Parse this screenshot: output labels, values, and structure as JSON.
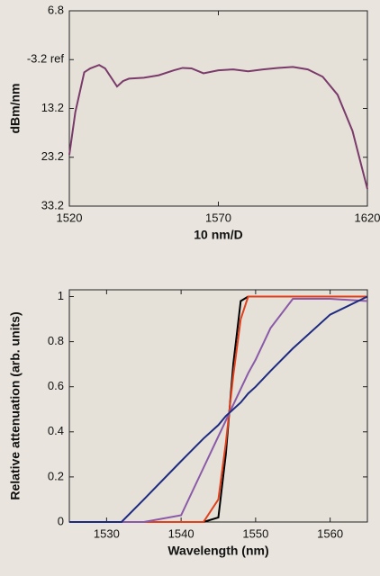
{
  "chart_data": [
    {
      "type": "line",
      "xlabel": "10 nm/D",
      "ylabel": "dBm/nm",
      "x": [
        1520,
        1522,
        1525,
        1527,
        1530,
        1532,
        1536,
        1538,
        1540,
        1545,
        1550,
        1555,
        1558,
        1561,
        1565,
        1570,
        1575,
        1580,
        1585,
        1590,
        1595,
        1600,
        1605,
        1610,
        1615,
        1620
      ],
      "series": [
        {
          "color": "#7a3a6a",
          "values": [
            -22.7,
            -14.0,
            -5.8,
            -5.0,
            -4.3,
            -5.0,
            -8.7,
            -7.6,
            -7.1,
            -6.9,
            -6.4,
            -5.4,
            -4.9,
            -5.0,
            -6.0,
            -5.4,
            -5.2,
            -5.6,
            -5.2,
            -4.9,
            -4.7,
            -5.2,
            -6.7,
            -10.4,
            -17.8,
            -29.7
          ]
        }
      ],
      "xlim": [
        1520,
        1620
      ],
      "xticks": [
        1520,
        1570,
        1620
      ],
      "ylim": [
        -33.2,
        6.8
      ],
      "yticks": [
        {
          "value": 6.8,
          "label": "6.8"
        },
        {
          "value": -3.2,
          "label": "-3.2 ref"
        },
        {
          "value": -13.2,
          "label": "13.2"
        },
        {
          "value": -23.2,
          "label": "23.2"
        },
        {
          "value": -33.2,
          "label": "33.2"
        }
      ]
    },
    {
      "type": "line",
      "xlabel": "Wavelength (nm)",
      "ylabel": "Relative attenuation (arb. units)",
      "x": [
        1525,
        1530,
        1532,
        1535,
        1540,
        1543,
        1545,
        1546,
        1547,
        1548,
        1549,
        1550,
        1552,
        1555,
        1560,
        1565
      ],
      "series": [
        {
          "color": "#000000",
          "values": [
            0,
            0,
            0,
            0,
            0,
            0,
            0.02,
            0.3,
            0.7,
            0.98,
            1,
            1,
            1,
            1,
            1,
            1
          ]
        },
        {
          "color": "#e0401c",
          "values": [
            0,
            0,
            0,
            0,
            0,
            0,
            0.1,
            0.35,
            0.65,
            0.9,
            1,
            1,
            1,
            1,
            1,
            1
          ]
        },
        {
          "color": "#8a5aa8",
          "values": [
            0,
            0,
            0,
            0,
            0.03,
            0.24,
            0.38,
            0.45,
            0.52,
            0.59,
            0.66,
            0.72,
            0.86,
            0.99,
            0.99,
            0.98
          ]
        },
        {
          "color": "#1e2a80",
          "values": [
            0,
            0,
            0,
            0.1,
            0.27,
            0.37,
            0.43,
            0.47,
            0.5,
            0.53,
            0.57,
            0.6,
            0.67,
            0.77,
            0.92,
            1
          ]
        }
      ],
      "xlim": [
        1525,
        1565
      ],
      "xticks": [
        1530,
        1540,
        1550,
        1560
      ],
      "ylim": [
        0,
        1.03
      ],
      "yticks": [
        0,
        0.2,
        0.4,
        0.6,
        0.8,
        1
      ]
    }
  ]
}
